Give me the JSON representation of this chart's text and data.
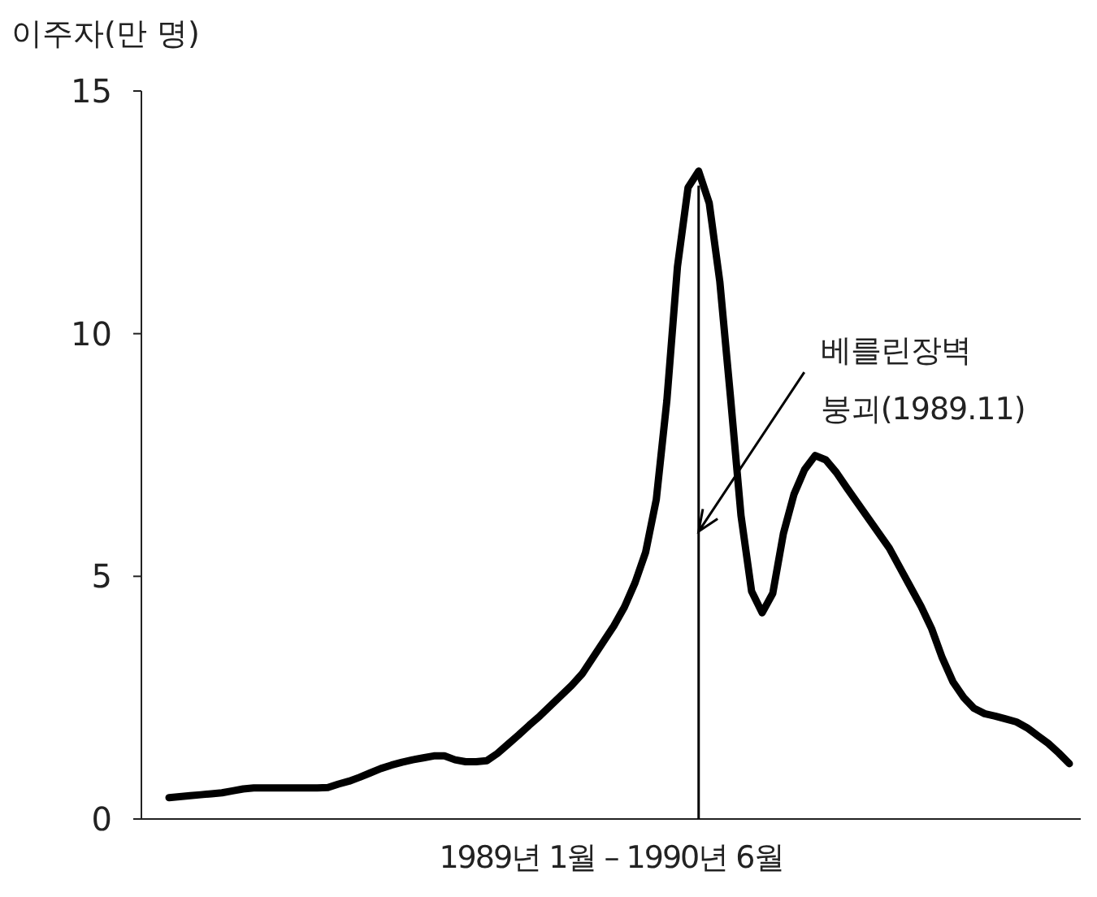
{
  "chart_data": {
    "type": "line",
    "ylabel": "이주자(만 명)",
    "xlabel": "1989년 1월 – 1990년 6월",
    "categories": [
      null,
      null,
      null,
      null,
      null,
      null,
      null,
      null,
      null,
      null,
      null,
      null,
      null,
      null,
      null,
      null,
      null,
      null,
      null,
      null,
      null,
      null,
      null,
      null,
      null,
      null,
      null,
      null,
      null,
      null,
      null,
      null,
      null,
      null,
      null,
      null,
      null,
      null,
      null,
      null,
      null,
      null,
      null,
      null,
      null,
      null,
      null,
      null,
      null,
      null,
      null,
      null,
      null,
      null,
      null,
      null,
      null,
      null,
      null,
      null,
      null,
      null,
      null,
      null,
      null,
      null,
      null,
      null,
      null,
      null,
      null,
      null,
      null,
      null,
      null,
      null,
      null,
      null,
      null,
      null,
      null,
      null,
      null,
      null,
      null,
      null
    ],
    "ylim": [
      0,
      15
    ],
    "yticks": [
      0,
      5,
      10,
      15
    ],
    "tick_labels": "y",
    "series": [
      {
        "color": "#000000",
        "values": [
          0.44,
          0.46,
          0.48,
          0.5,
          0.52,
          0.54,
          0.58,
          0.62,
          0.64,
          0.64,
          0.64,
          0.64,
          0.64,
          0.64,
          0.64,
          0.65,
          0.72,
          0.78,
          0.86,
          0.95,
          1.04,
          1.11,
          1.17,
          1.22,
          1.26,
          1.3,
          1.3,
          1.22,
          1.18,
          1.18,
          1.2,
          1.35,
          1.54,
          1.73,
          1.93,
          2.12,
          2.33,
          2.54,
          2.75,
          2.99,
          3.32,
          3.65,
          3.98,
          4.37,
          4.87,
          5.5,
          6.58,
          8.62,
          11.38,
          13.01,
          13.35,
          12.69,
          11.07,
          8.71,
          6.25,
          4.69,
          4.25,
          4.65,
          5.88,
          6.69,
          7.2,
          7.49,
          7.4,
          7.14,
          6.82,
          6.51,
          6.2,
          5.89,
          5.58,
          5.18,
          4.78,
          4.38,
          3.92,
          3.32,
          2.83,
          2.51,
          2.28,
          2.17,
          2.12,
          2.06,
          2,
          1.88,
          1.72,
          1.56,
          1.36,
          1.14
        ]
      }
    ],
    "annotations": [
      "베를린장벽 붕괴(1989.11)"
    ]
  }
}
